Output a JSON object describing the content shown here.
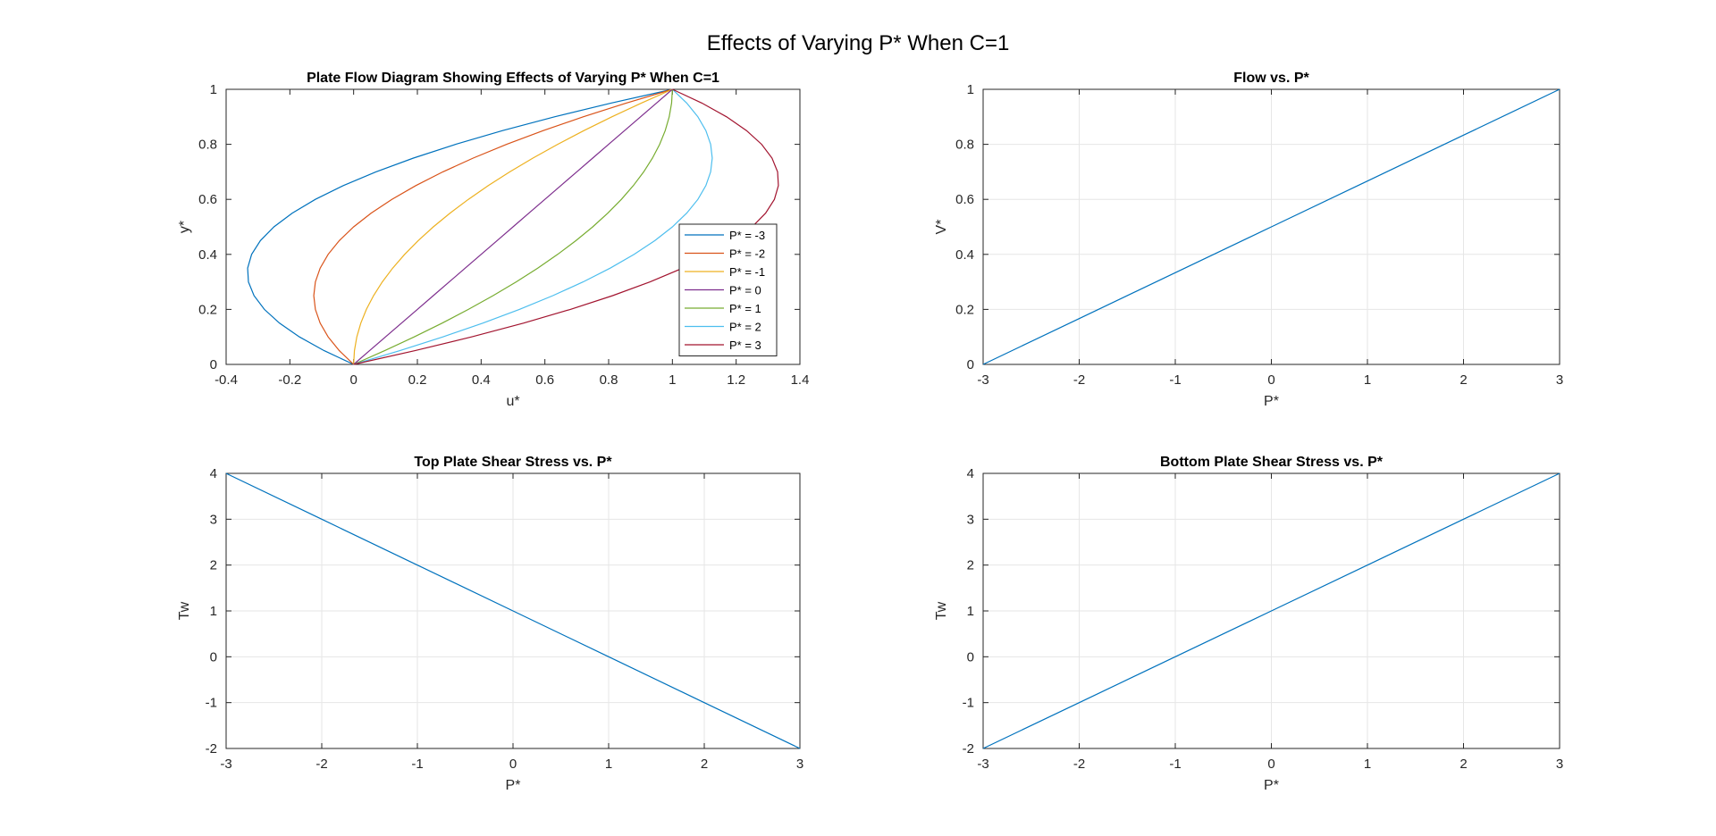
{
  "figure": {
    "title": "Effects of Varying P* When C=1"
  },
  "colors": [
    "#0072BD",
    "#D95319",
    "#EDB120",
    "#7E2F8E",
    "#77AC30",
    "#4DBEEE",
    "#A2142F"
  ],
  "chart_data": [
    {
      "type": "line",
      "title": "Plate Flow Diagram Showing Effects of Varying P* When C=1",
      "xlabel": "u*",
      "ylabel": "y*",
      "xlim": [
        -0.4,
        1.4
      ],
      "ylim": [
        0,
        1
      ],
      "xticks": [
        -0.4,
        -0.2,
        0,
        0.2,
        0.4,
        0.6,
        0.8,
        1,
        1.2,
        1.4
      ],
      "yticks": [
        0,
        0.2,
        0.4,
        0.6,
        0.8,
        1
      ],
      "xtick_labels": [
        "-0.4",
        "-0.2",
        "0",
        "0.2",
        "0.4",
        "0.6",
        "0.8",
        "1",
        "1.2",
        "1.4"
      ],
      "ytick_labels": [
        "0",
        "0.2",
        "0.4",
        "0.6",
        "0.8",
        "1"
      ],
      "grid": false,
      "legend": "right",
      "orientation": "u-vs-y",
      "model": "u* = y* + P* y* (1 - y*)",
      "y": [
        0,
        0.05,
        0.1,
        0.15,
        0.2,
        0.25,
        0.3,
        0.35,
        0.4,
        0.45,
        0.5,
        0.55,
        0.6,
        0.65,
        0.7,
        0.75,
        0.8,
        0.85,
        0.9,
        0.95,
        1
      ],
      "series": [
        {
          "name": "P* = -3",
          "p": -3
        },
        {
          "name": "P* = -2",
          "p": -2
        },
        {
          "name": "P* = -1",
          "p": -1
        },
        {
          "name": "P* = 0",
          "p": 0
        },
        {
          "name": "P* = 1",
          "p": 1
        },
        {
          "name": "P* = 2",
          "p": 2
        },
        {
          "name": "P* = 3",
          "p": 3
        }
      ]
    },
    {
      "type": "line",
      "title": "Flow vs. P*",
      "xlabel": "P*",
      "ylabel": "V*",
      "xlim": [
        -3,
        3
      ],
      "ylim": [
        0,
        1
      ],
      "xticks": [
        -3,
        -2,
        -1,
        0,
        1,
        2,
        3
      ],
      "yticks": [
        0,
        0.2,
        0.4,
        0.6,
        0.8,
        1
      ],
      "xtick_labels": [
        "-3",
        "-2",
        "-1",
        "0",
        "1",
        "2",
        "3"
      ],
      "ytick_labels": [
        "0",
        "0.2",
        "0.4",
        "0.6",
        "0.8",
        "1"
      ],
      "grid": true,
      "x": [
        -3,
        -2,
        -1,
        0,
        1,
        2,
        3
      ],
      "series": [
        {
          "values": [
            0,
            0.1667,
            0.3333,
            0.5,
            0.6667,
            0.8333,
            1
          ]
        }
      ]
    },
    {
      "type": "line",
      "title": "Top Plate Shear Stress vs. P*",
      "xlabel": "P*",
      "ylabel": "Tw",
      "xlim": [
        -3,
        3
      ],
      "ylim": [
        -2,
        4
      ],
      "xticks": [
        -3,
        -2,
        -1,
        0,
        1,
        2,
        3
      ],
      "yticks": [
        -2,
        -1,
        0,
        1,
        2,
        3,
        4
      ],
      "xtick_labels": [
        "-3",
        "-2",
        "-1",
        "0",
        "1",
        "2",
        "3"
      ],
      "ytick_labels": [
        "-2",
        "-1",
        "0",
        "1",
        "2",
        "3",
        "4"
      ],
      "grid": true,
      "x": [
        -3,
        -2,
        -1,
        0,
        1,
        2,
        3
      ],
      "series": [
        {
          "values": [
            4,
            3,
            2,
            1,
            0,
            -1,
            -2
          ]
        }
      ]
    },
    {
      "type": "line",
      "title": "Bottom Plate Shear Stress vs. P*",
      "xlabel": "P*",
      "ylabel": "Tw",
      "xlim": [
        -3,
        3
      ],
      "ylim": [
        -2,
        4
      ],
      "xticks": [
        -3,
        -2,
        -1,
        0,
        1,
        2,
        3
      ],
      "yticks": [
        -2,
        -1,
        0,
        1,
        2,
        3,
        4
      ],
      "xtick_labels": [
        "-3",
        "-2",
        "-1",
        "0",
        "1",
        "2",
        "3"
      ],
      "ytick_labels": [
        "-2",
        "-1",
        "0",
        "1",
        "2",
        "3",
        "4"
      ],
      "grid": true,
      "x": [
        -3,
        -2,
        -1,
        0,
        1,
        2,
        3
      ],
      "series": [
        {
          "values": [
            -2,
            -1,
            0,
            1,
            2,
            3,
            4
          ]
        }
      ]
    }
  ]
}
